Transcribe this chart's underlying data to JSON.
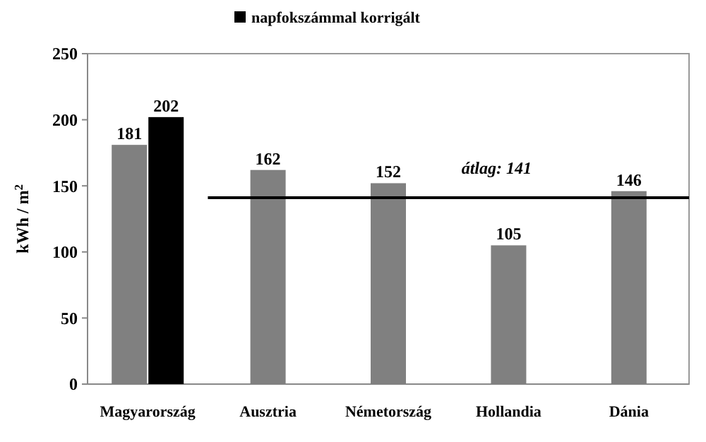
{
  "chart_data": {
    "type": "bar",
    "categories": [
      "Magyarország",
      "Ausztria",
      "Németország",
      "Hollandia",
      "Dánia"
    ],
    "series": [
      {
        "color": "#808080",
        "values": [
          181,
          162,
          152,
          105,
          146
        ]
      },
      {
        "name": "napfokszámmal korrigált",
        "color": "#000000",
        "values": [
          202,
          null,
          null,
          null,
          null
        ]
      }
    ],
    "ylabel": "kWh / m$^{2}$",
    "ylim": [
      0,
      250
    ],
    "yticks": [
      0,
      50,
      100,
      150,
      200,
      250
    ],
    "grid": false,
    "legend": "top",
    "data_labels": true,
    "ref_lines": [
      {
        "axis": "y",
        "value": 141,
        "label": "átlag: 141",
        "color": "#000000"
      }
    ]
  }
}
